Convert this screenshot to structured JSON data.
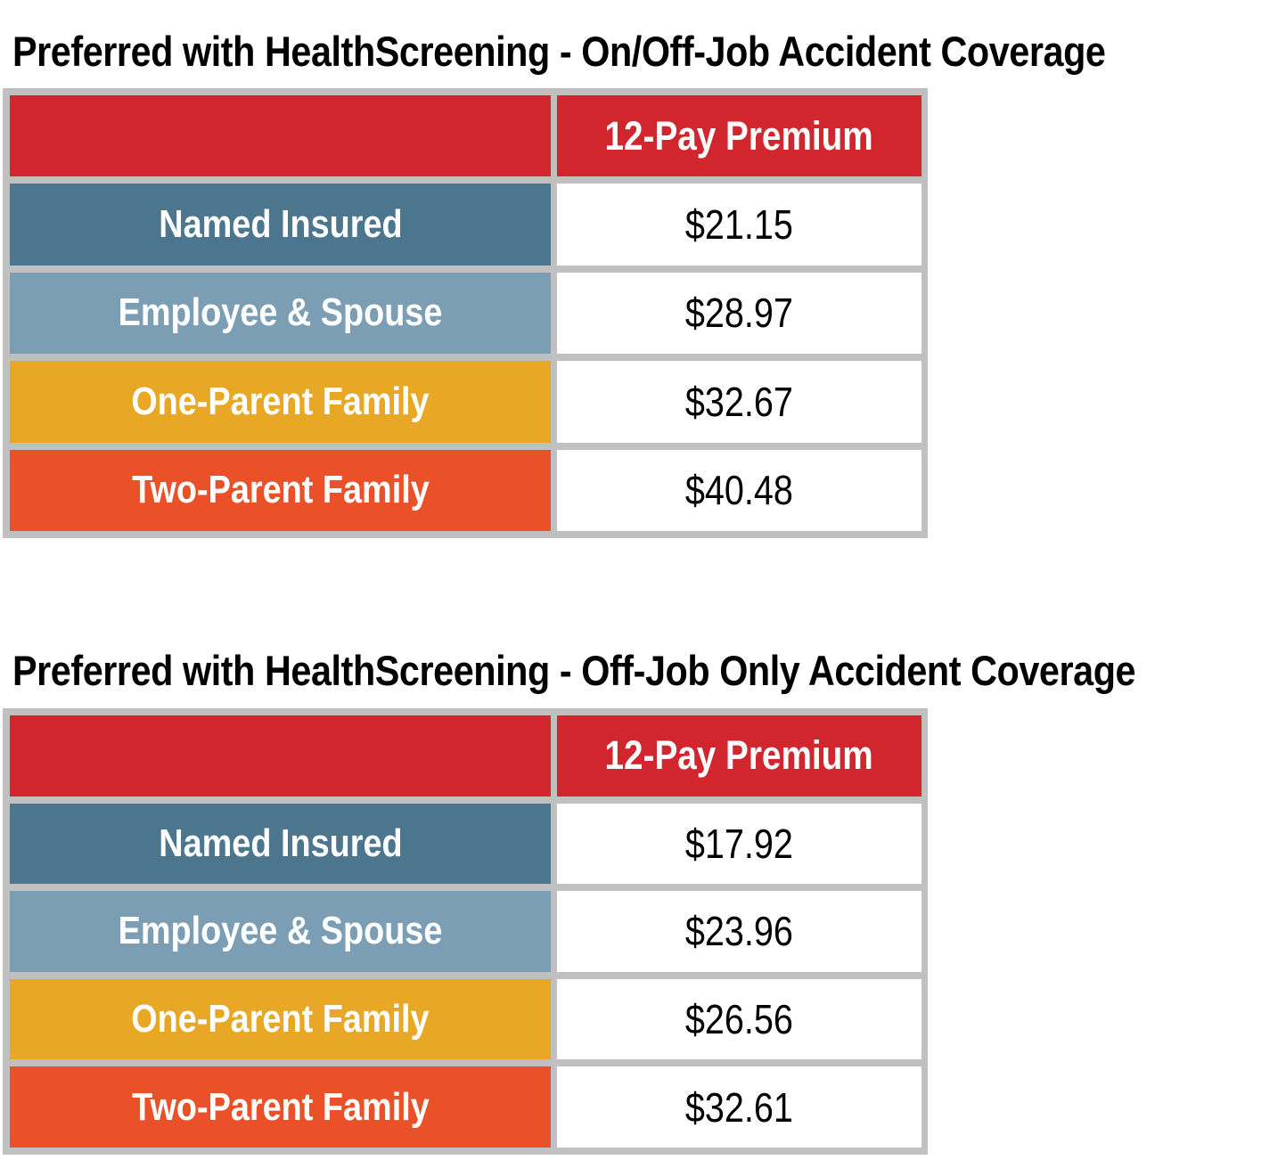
{
  "document": {
    "background": "#FFFFFF",
    "grid_color": "#C1C0C0",
    "header_color": "#D2262E",
    "header_text_color": "#FFFFFF",
    "title_color": "#000000",
    "value_text_color": "#000000"
  },
  "tables": [
    {
      "title": "Preferred with HealthScreening - On/Off-Job Accident Coverage",
      "columns": [
        "",
        "12-Pay Premium"
      ],
      "rows": [
        {
          "label": "Named Insured",
          "value": "$21.15",
          "row_color": "#4C758E"
        },
        {
          "label": "Employee & Spouse",
          "value": "$28.97",
          "row_color": "#7B9EB4"
        },
        {
          "label": "One-Parent Family",
          "value": "$32.67",
          "row_color": "#E8A825"
        },
        {
          "label": "Two-Parent Family",
          "value": "$40.48",
          "row_color": "#EA5128"
        }
      ]
    },
    {
      "title": "Preferred with HealthScreening - Off-Job Only Accident Coverage",
      "columns": [
        "",
        "12-Pay Premium"
      ],
      "rows": [
        {
          "label": "Named Insured",
          "value": "$17.92",
          "row_color": "#4C758E"
        },
        {
          "label": "Employee & Spouse",
          "value": "$23.96",
          "row_color": "#7B9EB4"
        },
        {
          "label": "One-Parent Family",
          "value": "$26.56",
          "row_color": "#E8A825"
        },
        {
          "label": "Two-Parent Family",
          "value": "$32.61",
          "row_color": "#EA5128"
        }
      ]
    }
  ]
}
